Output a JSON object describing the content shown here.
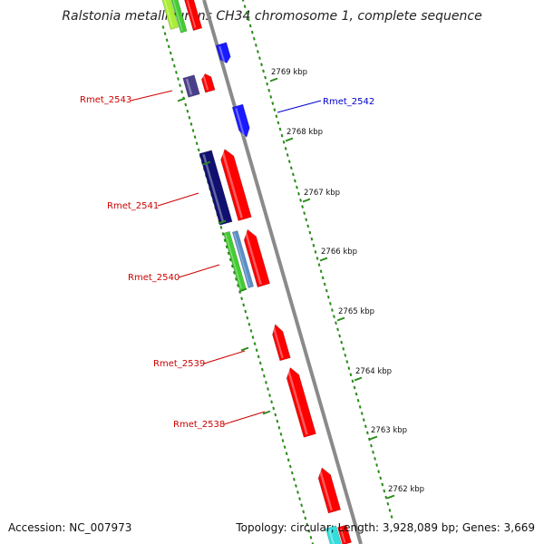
{
  "title": "Ralstonia metallidurans CH34 chromosome 1, complete sequence",
  "accession_text": "Accession: NC_007973",
  "summary_text": "Topology: circular; Length: 3,928,089 bp; Genes: 3,669",
  "colors": {
    "red": "#ff0000",
    "blue": "#1a1aff",
    "navy": "#101070",
    "purple": "#4a3f8a",
    "green": "#44cc33",
    "steel": "#5a90c8",
    "lime": "#aaee33",
    "cyan": "#33dddd",
    "backbone": "#8a8a8a",
    "ruler": "#2a8a1a",
    "label_red": "#cc0000",
    "label_blue": "#0000cc"
  },
  "ticks": [
    {
      "label": "2769 kbp"
    },
    {
      "label": "2768 kbp"
    },
    {
      "label": "2767 kbp"
    },
    {
      "label": "2766 kbp"
    },
    {
      "label": "2765 kbp"
    },
    {
      "label": "2764 kbp"
    },
    {
      "label": "2763 kbp"
    },
    {
      "label": "2762 kbp"
    }
  ],
  "gene_labels": [
    {
      "text": "Rmet_2543",
      "color": "label_red"
    },
    {
      "text": "Rmet_2542",
      "color": "label_blue"
    },
    {
      "text": "Rmet_2541",
      "color": "label_red"
    },
    {
      "text": "Rmet_2540",
      "color": "label_red"
    },
    {
      "text": "Rmet_2539",
      "color": "label_red"
    },
    {
      "text": "Rmet_2538",
      "color": "label_red"
    }
  ]
}
